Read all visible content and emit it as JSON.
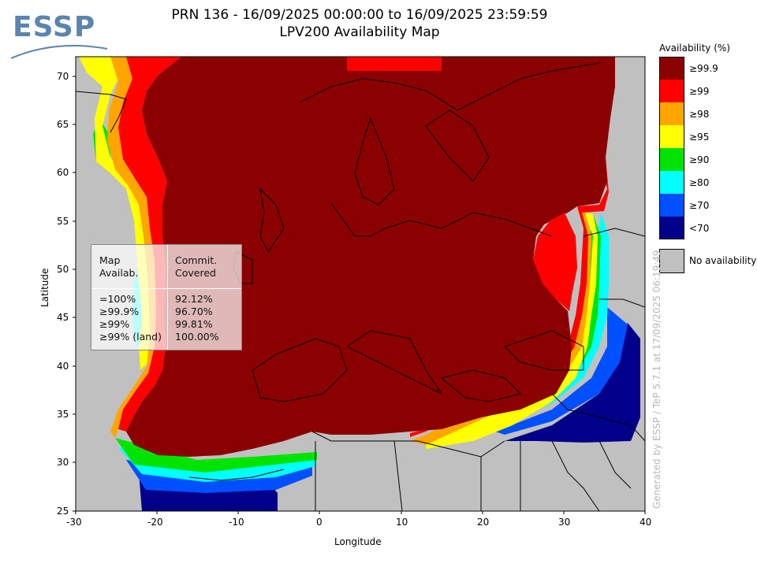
{
  "header": {
    "title": "PRN 136 - 16/09/2025 00:00:00 to 16/09/2025 23:59:59",
    "subtitle": "LPV200 Availability Map"
  },
  "logo": {
    "text": "ESSP"
  },
  "axes": {
    "xlabel": "Longitude",
    "ylabel": "Latitude",
    "xticks": [
      "-30",
      "-20",
      "-10",
      "0",
      "10",
      "20",
      "30",
      "40"
    ],
    "yticks": [
      "70",
      "65",
      "60",
      "55",
      "50",
      "45",
      "40",
      "35",
      "30",
      "25"
    ]
  },
  "legend": {
    "title": "Availability (%)",
    "items": [
      {
        "label": "≥99.9",
        "color": "#8b0000"
      },
      {
        "label": "≥99",
        "color": "#ff0000"
      },
      {
        "label": "≥98",
        "color": "#ffa500"
      },
      {
        "label": "≥95",
        "color": "#ffff00"
      },
      {
        "label": "≥90",
        "color": "#00e400"
      },
      {
        "label": "≥80",
        "color": "#00ffff"
      },
      {
        "label": "≥70",
        "color": "#0050ff"
      },
      {
        "label": "<70",
        "color": "#00008b"
      }
    ],
    "no_availability": {
      "label": "No availability",
      "color": "#c0c0c0"
    }
  },
  "stats": {
    "col1_header": [
      "Map",
      "Availab."
    ],
    "col2_header": [
      "Commit.",
      "Covered"
    ],
    "rows": [
      {
        "level": "=100%",
        "value": "92.12%"
      },
      {
        "level": "≥99.9%",
        "value": "96.70%"
      },
      {
        "level": "≥99%",
        "value": "99.81%"
      },
      {
        "level": "≥99% (land)",
        "value": "100.00%"
      }
    ]
  },
  "credit": "Generated by ESSP / TeP 5.7.1 at 17/09/2025 06:19:49"
}
